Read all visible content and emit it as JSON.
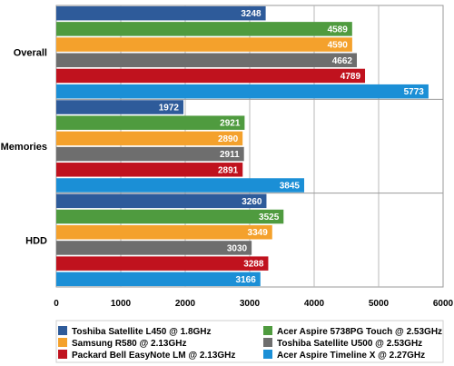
{
  "chart_data": {
    "type": "bar",
    "orientation": "horizontal",
    "categories": [
      "Overall",
      "Memories",
      "HDD"
    ],
    "series": [
      {
        "name": "Toshiba Satellite L450 @ 1.8GHz",
        "color": "#2e5b9a",
        "values": [
          3248,
          1972,
          3260
        ]
      },
      {
        "name": "Acer Aspire 5738PG Touch @ 2.53GHz",
        "color": "#4f9b3f",
        "values": [
          4589,
          2921,
          3525
        ]
      },
      {
        "name": "Samsung R580 @ 2.13GHz",
        "color": "#f4a12c",
        "values": [
          4590,
          2890,
          3349
        ]
      },
      {
        "name": "Toshiba Satellite U500 @ 2.53GHz",
        "color": "#6e6e6e",
        "values": [
          4662,
          2911,
          3030
        ]
      },
      {
        "name": "Packard Bell EasyNote LM @ 2.13GHz",
        "color": "#c0121e",
        "values": [
          4789,
          2891,
          3288
        ]
      },
      {
        "name": "Acer Aspire Timeline X @ 2.27GHz",
        "color": "#1b8fd6",
        "values": [
          5773,
          3845,
          3166
        ]
      }
    ],
    "xlim": [
      0,
      6000
    ],
    "xticks": [
      "0",
      "1000",
      "2000",
      "3000",
      "4000",
      "5000",
      "6000"
    ],
    "grid": true,
    "legend_position": "bottom",
    "legend_order": [
      0,
      1,
      2,
      3,
      4,
      5
    ]
  }
}
